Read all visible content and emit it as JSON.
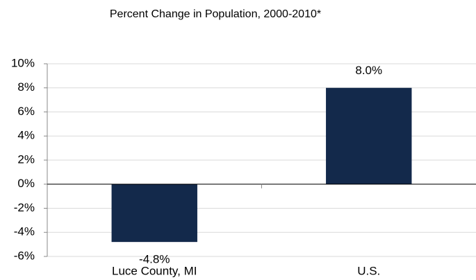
{
  "chart_data": {
    "type": "bar",
    "title": "Percent Change in Population, 2000-2010*",
    "categories": [
      "Luce County, MI",
      "U.S."
    ],
    "values": [
      -4.8,
      8.0
    ],
    "value_labels": [
      "-4.8%",
      "8.0%"
    ],
    "color": "#13294b",
    "ylim": [
      -6,
      10
    ],
    "yticks": [
      {
        "value": -6,
        "label": "-6%"
      },
      {
        "value": -4,
        "label": "-4%"
      },
      {
        "value": -2,
        "label": "-2%"
      },
      {
        "value": 0,
        "label": "0%"
      },
      {
        "value": 2,
        "label": "2%"
      },
      {
        "value": 4,
        "label": "4%"
      },
      {
        "value": 6,
        "label": "6%"
      },
      {
        "value": 8,
        "label": "8%"
      },
      {
        "value": 10,
        "label": "10%"
      }
    ],
    "grid": true
  }
}
